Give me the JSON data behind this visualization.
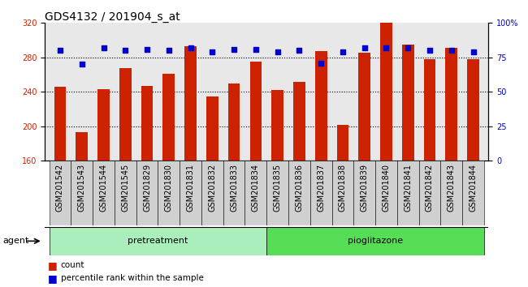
{
  "title": "GDS4132 / 201904_s_at",
  "samples": [
    "GSM201542",
    "GSM201543",
    "GSM201544",
    "GSM201545",
    "GSM201829",
    "GSM201830",
    "GSM201831",
    "GSM201832",
    "GSM201833",
    "GSM201834",
    "GSM201835",
    "GSM201836",
    "GSM201837",
    "GSM201838",
    "GSM201839",
    "GSM201840",
    "GSM201841",
    "GSM201842",
    "GSM201843",
    "GSM201844"
  ],
  "counts": [
    246,
    193,
    243,
    268,
    247,
    261,
    293,
    235,
    250,
    275,
    242,
    252,
    287,
    202,
    285,
    320,
    295,
    278,
    291,
    278
  ],
  "percentiles": [
    80,
    70,
    82,
    80,
    81,
    80,
    82,
    79,
    81,
    81,
    79,
    80,
    71,
    79,
    82,
    82,
    82,
    80,
    80,
    79
  ],
  "pretreatment_count": 10,
  "pioglitazone_count": 10,
  "bar_color": "#cc2200",
  "dot_color": "#0000cc",
  "ylim_left": [
    160,
    320
  ],
  "ylim_right": [
    0,
    100
  ],
  "yticks_left": [
    160,
    200,
    240,
    280,
    320
  ],
  "yticks_right": [
    0,
    25,
    50,
    75,
    100
  ],
  "ytick_labels_right": [
    "0",
    "25",
    "50",
    "75",
    "100%"
  ],
  "dotted_line_y": [
    200,
    240,
    280
  ],
  "bg_color": "#ffffff",
  "plot_bg": "#e8e8e8",
  "agent_label": "agent",
  "group1_label": "pretreatment",
  "group2_label": "pioglitazone",
  "group1_color": "#aaeebb",
  "group2_color": "#55dd55",
  "legend_count_label": "count",
  "legend_pct_label": "percentile rank within the sample",
  "bar_width": 0.55,
  "title_fontsize": 10,
  "tick_fontsize": 7,
  "label_tick_fontsize": 7
}
